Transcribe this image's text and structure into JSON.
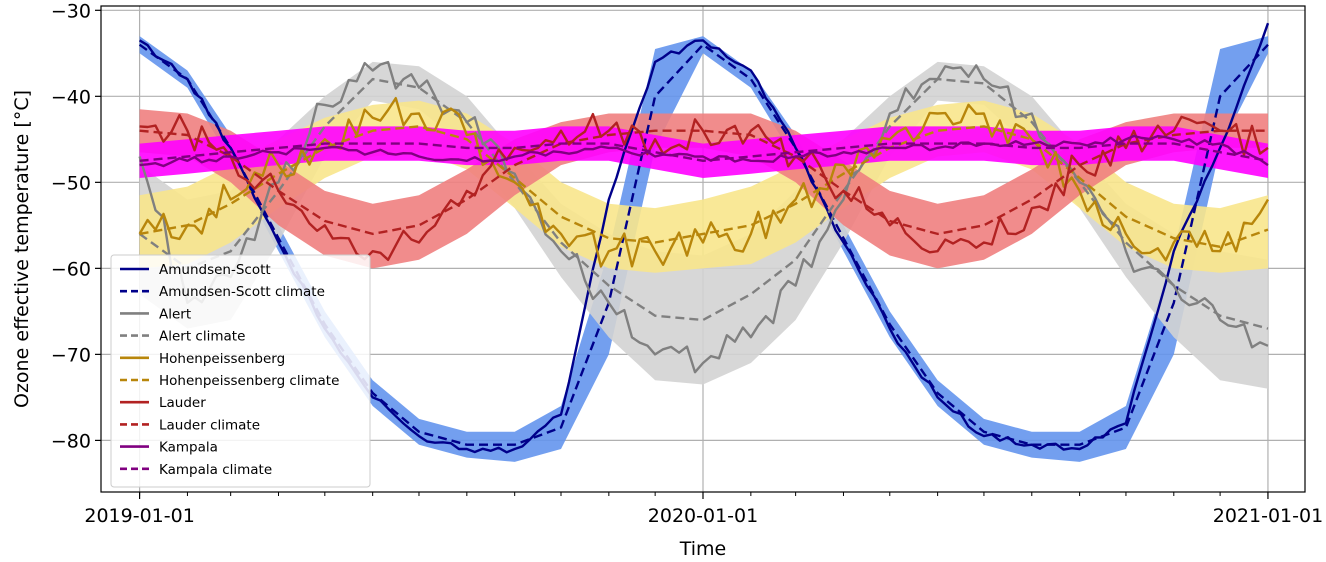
{
  "chart_data": {
    "type": "line",
    "title": "",
    "xlabel": "Time",
    "ylabel": "Ozone effective temperature [°C]",
    "x_range": [
      "2018-12-07",
      "2021-01-25"
    ],
    "x_ticks": [
      "2019-01-01",
      "2020-01-01",
      "2021-01-01"
    ],
    "ylim": [
      -86,
      -29.5
    ],
    "y_ticks": [
      -80,
      -70,
      -60,
      -50,
      -40,
      -30
    ],
    "y_tick_labels": [
      "−80",
      "−70",
      "−60",
      "−50",
      "−40",
      "−30"
    ],
    "grid": true,
    "legend_position": "lower-left",
    "legend": [
      {
        "label": "Amundsen-Scott",
        "style": "solid"
      },
      {
        "label": "Amundsen-Scott climate",
        "style": "dashed"
      },
      {
        "label": "Alert",
        "style": "solid"
      },
      {
        "label": "Alert climate",
        "style": "dashed"
      },
      {
        "label": "Hohenpeissenberg",
        "style": "solid"
      },
      {
        "label": "Hohenpeissenberg climate",
        "style": "dashed"
      },
      {
        "label": "Lauder",
        "style": "solid"
      },
      {
        "label": "Lauder climate",
        "style": "dashed"
      },
      {
        "label": "Kampala",
        "style": "solid"
      },
      {
        "label": "Kampala climate",
        "style": "dashed"
      }
    ],
    "x": [
      "2019-01-01",
      "2019-02-01",
      "2019-03-01",
      "2019-04-01",
      "2019-05-01",
      "2019-06-01",
      "2019-07-01",
      "2019-08-01",
      "2019-09-01",
      "2019-10-01",
      "2019-11-01",
      "2019-12-01",
      "2020-01-01",
      "2020-02-01",
      "2020-03-01",
      "2020-04-01",
      "2020-05-01",
      "2020-06-01",
      "2020-07-01",
      "2020-08-01",
      "2020-09-01",
      "2020-10-01",
      "2020-11-01",
      "2020-12-01",
      "2021-01-01"
    ],
    "series": [
      {
        "name": "Amundsen-Scott",
        "color": "#00008b",
        "style": "solid",
        "values": [
          -33.5,
          -38,
          -46,
          -57,
          -67,
          -75,
          -79.5,
          -81,
          -81,
          -77,
          -52,
          -36,
          -33.5,
          -37,
          -46,
          -57,
          -67,
          -75,
          -79.5,
          -80.5,
          -81,
          -78,
          -58,
          -46,
          -31.5
        ]
      },
      {
        "name": "Amundsen-Scott climate",
        "color": "#00008b",
        "style": "dashed",
        "values": [
          -34,
          -38,
          -46,
          -56.5,
          -66.5,
          -74.5,
          -79,
          -80.5,
          -80.5,
          -78.5,
          -64,
          -40,
          -34,
          -38,
          -46,
          -56.5,
          -66.5,
          -74.5,
          -79,
          -80.5,
          -80.5,
          -78.5,
          -64,
          -40,
          -34
        ],
        "band_color": "#6495ed",
        "band_low": [
          -35,
          -39,
          -47.5,
          -58,
          -68,
          -76,
          -80.5,
          -82,
          -82.5,
          -81,
          -70,
          -46,
          -35,
          -39,
          -47.5,
          -58,
          -68,
          -76,
          -80.5,
          -82,
          -82.5,
          -81,
          -70,
          -46,
          -35
        ],
        "band_high": [
          -33,
          -37,
          -44.5,
          -55,
          -65,
          -73,
          -77.5,
          -79,
          -79,
          -76,
          -58,
          -34.5,
          -33,
          -37,
          -44.5,
          -55,
          -65,
          -73,
          -77.5,
          -79,
          -79,
          -76,
          -58,
          -34.5,
          -33
        ]
      },
      {
        "name": "Alert",
        "color": "#808080",
        "style": "solid",
        "values": [
          -47,
          -64,
          -61,
          -50,
          -41,
          -37,
          -39,
          -43,
          -49,
          -58,
          -64,
          -70,
          -71,
          -68,
          -62,
          -52,
          -42,
          -38,
          -38,
          -42,
          -50,
          -58,
          -62,
          -66,
          -69
        ]
      },
      {
        "name": "Alert climate",
        "color": "#808080",
        "style": "dashed",
        "values": [
          -56,
          -60,
          -58,
          -51,
          -43.5,
          -38,
          -39,
          -43,
          -50,
          -57,
          -62,
          -65.5,
          -66,
          -63,
          -59,
          -51,
          -43.5,
          -38,
          -38.5,
          -43,
          -50,
          -57,
          -62,
          -65.5,
          -67
        ],
        "band_color": "#d3d3d3",
        "band_low": [
          -63,
          -67,
          -66,
          -57,
          -47,
          -40.5,
          -41.5,
          -46,
          -53,
          -61,
          -68,
          -73,
          -73.5,
          -71,
          -66,
          -57,
          -47,
          -40.5,
          -41,
          -46,
          -53,
          -61,
          -68,
          -73,
          -74
        ],
        "band_high": [
          -48,
          -52,
          -51,
          -45,
          -40,
          -36,
          -36.5,
          -40,
          -46.5,
          -52.5,
          -56,
          -58,
          -58.5,
          -56,
          -51,
          -45,
          -40,
          -36,
          -36.5,
          -40,
          -46.5,
          -52.5,
          -56,
          -58,
          -59
        ]
      },
      {
        "name": "Hohenpeissenberg",
        "color": "#b8860b",
        "style": "solid",
        "values": [
          -56,
          -55,
          -52,
          -48,
          -45,
          -42.5,
          -42,
          -44.5,
          -50,
          -56,
          -58,
          -58,
          -57,
          -56,
          -52,
          -48,
          -45,
          -42,
          -42,
          -45,
          -51,
          -56,
          -57,
          -58,
          -52
        ]
      },
      {
        "name": "Hohenpeissenberg climate",
        "color": "#b8860b",
        "style": "dashed",
        "values": [
          -56,
          -55,
          -52.5,
          -49,
          -46,
          -44,
          -43.5,
          -45,
          -49.5,
          -54,
          -56.5,
          -57,
          -56,
          -55,
          -52.5,
          -49,
          -46,
          -44,
          -43.5,
          -45,
          -49.5,
          -54,
          -56.5,
          -57.5,
          -55.5
        ],
        "band_color": "#f8e58c",
        "band_low": [
          -60,
          -59.5,
          -57,
          -53,
          -49.5,
          -47,
          -46.5,
          -48.5,
          -53,
          -57.5,
          -60,
          -60.5,
          -60,
          -59.5,
          -57,
          -53,
          -49.5,
          -47,
          -46.5,
          -48.5,
          -53,
          -57.5,
          -60,
          -60.5,
          -60
        ],
        "band_high": [
          -51.5,
          -50.5,
          -48,
          -45,
          -42.5,
          -41,
          -40.5,
          -42,
          -45.5,
          -50,
          -52.5,
          -53,
          -52,
          -50.5,
          -48,
          -45,
          -42.5,
          -41,
          -40.5,
          -42,
          -45.5,
          -50,
          -52.5,
          -53,
          -51.5
        ]
      },
      {
        "name": "Lauder",
        "color": "#b22222",
        "style": "solid",
        "values": [
          -43.5,
          -44,
          -47,
          -51,
          -55,
          -58,
          -57,
          -51,
          -46,
          -44,
          -44,
          -45,
          -44,
          -44,
          -47,
          -51,
          -55,
          -58,
          -57,
          -53,
          -48,
          -46,
          -44,
          -44,
          -46
        ]
      },
      {
        "name": "Lauder climate",
        "color": "#b22222",
        "style": "dashed",
        "values": [
          -44,
          -44.5,
          -47,
          -51,
          -54.5,
          -56,
          -55,
          -52,
          -48,
          -45.5,
          -44.5,
          -44,
          -44,
          -44.5,
          -47,
          -51,
          -54.5,
          -56,
          -55,
          -52,
          -48,
          -45.5,
          -44.5,
          -44,
          -44
        ],
        "band_color": "#f08080",
        "band_low": [
          -46.5,
          -47,
          -50,
          -55,
          -58.5,
          -60,
          -59,
          -56,
          -51.5,
          -48,
          -46.5,
          -46,
          -46,
          -47,
          -50,
          -55,
          -58.5,
          -60,
          -59,
          -56,
          -51.5,
          -48,
          -46.5,
          -46,
          -46
        ],
        "band_high": [
          -41.5,
          -42,
          -44,
          -47.5,
          -51,
          -52.5,
          -51.5,
          -48.5,
          -45,
          -43,
          -42,
          -42,
          -42,
          -42,
          -44,
          -47.5,
          -51,
          -52.5,
          -51.5,
          -48.5,
          -45,
          -43,
          -42,
          -42,
          -42
        ]
      },
      {
        "name": "Kampala",
        "color": "#800080",
        "style": "solid",
        "values": [
          -48,
          -47.5,
          -47,
          -46.5,
          -46,
          -46.5,
          -47,
          -47.5,
          -47,
          -46.5,
          -46,
          -47,
          -47,
          -47.5,
          -47,
          -46.5,
          -46,
          -46,
          -45.5,
          -45.5,
          -45.5,
          -45,
          -45,
          -45.5,
          -48
        ]
      },
      {
        "name": "Kampala climate",
        "color": "#800080",
        "style": "dashed",
        "values": [
          -47.5,
          -47,
          -46.5,
          -46,
          -45.5,
          -45.5,
          -45.5,
          -46,
          -46,
          -45.5,
          -45.5,
          -46.5,
          -47.5,
          -47,
          -46.5,
          -46,
          -45.5,
          -45.5,
          -45.5,
          -46,
          -46,
          -45.5,
          -45.5,
          -46.5,
          -47.5
        ],
        "band_color": "#ff00ff",
        "band_low": [
          -49.5,
          -49,
          -48.5,
          -48,
          -47.5,
          -47.5,
          -47.5,
          -48,
          -48,
          -47.5,
          -47.5,
          -48.5,
          -49.5,
          -49,
          -48.5,
          -48,
          -47.5,
          -47.5,
          -47.5,
          -48,
          -48,
          -47.5,
          -47.5,
          -48.5,
          -49.5
        ],
        "band_high": [
          -45.5,
          -45,
          -44.5,
          -44,
          -43.5,
          -43.5,
          -43.5,
          -44,
          -44,
          -43.5,
          -43.5,
          -44.5,
          -45.5,
          -45,
          -44.5,
          -44,
          -43.5,
          -43.5,
          -43.5,
          -44,
          -44,
          -43.5,
          -43.5,
          -44.5,
          -45.5
        ]
      }
    ]
  }
}
